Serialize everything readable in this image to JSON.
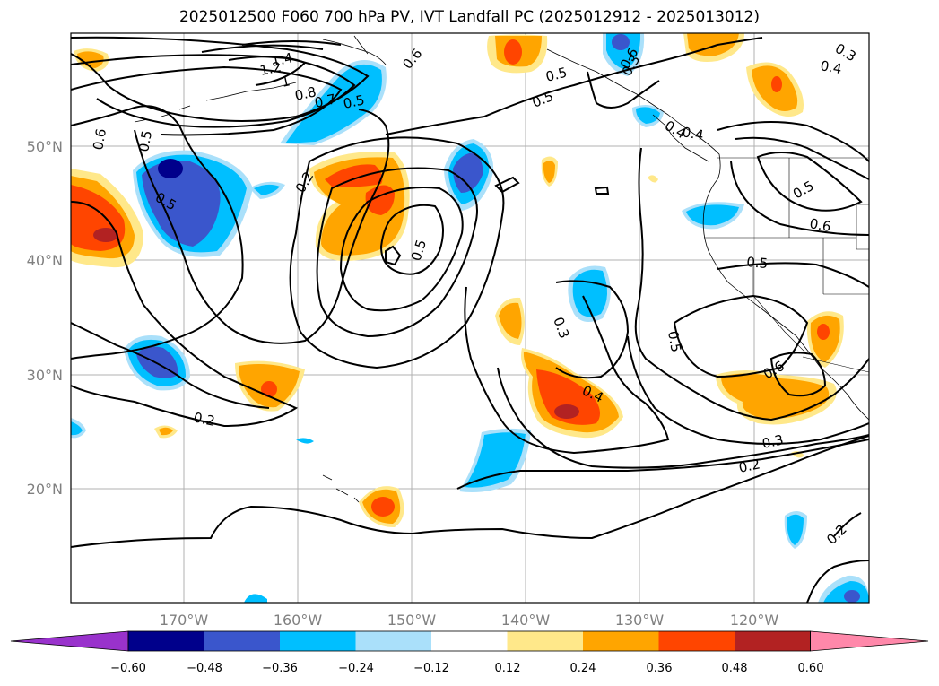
{
  "title": "2025012500 F060 700 hPa PV, IVT Landfall PC (2025012912 - 2025013012)",
  "map": {
    "lat_labels": [
      "50°N",
      "40°N",
      "30°N",
      "20°N"
    ],
    "lon_labels": [
      "170°W",
      "160°W",
      "150°W",
      "140°W",
      "130°W",
      "120°W"
    ]
  },
  "contour_labels": [
    "1.4",
    "1.2",
    "1",
    "0.8",
    "0.7",
    "0.5",
    "0.6",
    "0.5",
    "0.6",
    "0.5",
    "0.2",
    "0.5",
    "0.5",
    "0.5",
    "0.4",
    "0.5",
    "0.3",
    "0.4",
    "0.3",
    "0.4",
    "0.6",
    "0.6",
    "0.5",
    "0.3",
    "0.4",
    "0.5",
    "0.6",
    "0.3",
    "0.2",
    "0.2",
    "0.2"
  ],
  "colorbar": {
    "ticks": [
      "−0.60",
      "−0.48",
      "−0.36",
      "−0.24",
      "−0.12",
      "0.12",
      "0.24",
      "0.36",
      "0.48",
      "0.60"
    ],
    "colors": [
      "#9932cc",
      "#00008b",
      "#3a56cc",
      "#00bfff",
      "#aae0fa",
      "#ffffff",
      "#ffe88a",
      "#ffa500",
      "#ff4500",
      "#b22222",
      "#ff88aa"
    ]
  }
}
